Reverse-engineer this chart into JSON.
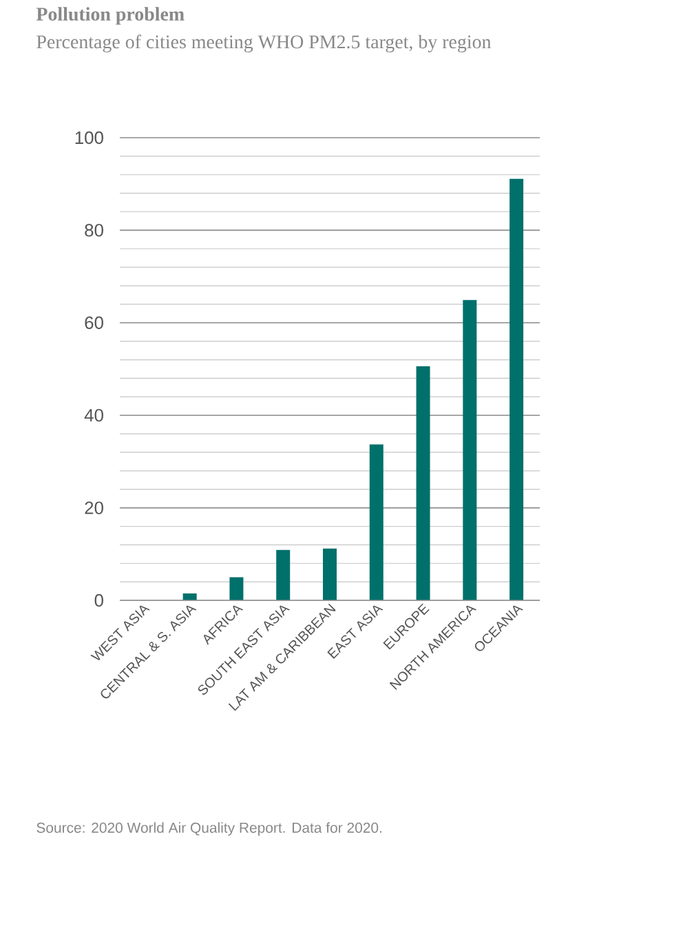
{
  "chart_data": {
    "type": "bar",
    "title": "Pollution problem",
    "subtitle": "Percentage of cities meeting WHO PM2.5 target, by region",
    "categories": [
      "WEST ASIA",
      "CENTRAL & S. ASIA",
      "AFRICA",
      "SOUTH EAST ASIA",
      "LAT AM & CARIBBEAN",
      "EAST ASIA",
      "EUROPE",
      "NORTH AMERICA",
      "OCEANIA"
    ],
    "values": [
      0,
      1.5,
      5,
      10.9,
      11.2,
      33.7,
      50.6,
      64.9,
      91.1
    ],
    "color": "#00706b",
    "ylim": [
      0,
      100
    ],
    "yticks": [
      0,
      20,
      40,
      60,
      80,
      100
    ],
    "grid": "y",
    "annotations": [
      "Source: 2020 World Air Quality Report. Data for 2020."
    ]
  }
}
